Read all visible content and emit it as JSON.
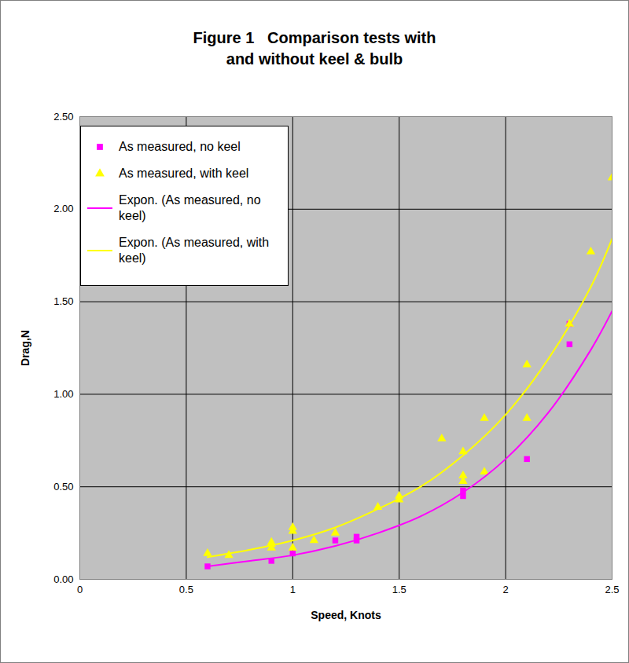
{
  "chart_data": {
    "type": "scatter",
    "title": "Figure 1   Comparison tests with\nand without keel & bulb",
    "x_label": "Speed, Knots",
    "y_label": "Drag,N",
    "xlim": [
      0,
      2.5
    ],
    "xticks": [
      0,
      0.5,
      1,
      1.5,
      2,
      2.5
    ],
    "ylim": [
      0,
      2.5
    ],
    "yticks": [
      {
        "value": 0,
        "label": "0.00"
      },
      {
        "value": 0.5,
        "label": "0.50"
      },
      {
        "value": 1,
        "label": "1.00"
      },
      {
        "value": 1.5,
        "label": "1.50"
      },
      {
        "value": 2,
        "label": "2.00"
      },
      {
        "value": 2.5,
        "label": "2.50"
      }
    ],
    "grid": true,
    "legend": "top-left",
    "series": [
      {
        "name": "As measured, no keel",
        "type": "scatter",
        "marker": "square",
        "color": "#ff00ff",
        "x": [
          0.6,
          0.9,
          1.0,
          1.2,
          1.3,
          1.3,
          1.8,
          1.8,
          2.1,
          2.3,
          2.3
        ],
        "values": [
          0.07,
          0.1,
          0.14,
          0.21,
          0.21,
          0.23,
          0.45,
          0.48,
          0.65,
          1.27,
          1.38
        ]
      },
      {
        "name": "As measured, with keel",
        "type": "scatter",
        "marker": "triangle",
        "color": "#ffff00",
        "x": [
          0.6,
          0.7,
          0.9,
          0.9,
          0.9,
          1.0,
          1.0,
          1.0,
          1.1,
          1.2,
          1.4,
          1.5,
          1.5,
          1.7,
          1.8,
          1.8,
          1.8,
          1.9,
          1.9,
          2.1,
          2.1,
          2.3,
          2.4,
          2.5
        ],
        "values": [
          0.14,
          0.13,
          0.17,
          0.19,
          0.2,
          0.17,
          0.26,
          0.28,
          0.21,
          0.25,
          0.39,
          0.43,
          0.45,
          0.76,
          0.53,
          0.56,
          0.69,
          0.58,
          0.87,
          0.87,
          1.16,
          1.38,
          1.77,
          2.17
        ]
      },
      {
        "name": "Expon. (As measured, no keel)",
        "type": "line",
        "line_style": "solid",
        "color": "#ff00ff",
        "x": [
          0.6,
          0.8,
          1.0,
          1.2,
          1.4,
          1.6,
          1.8,
          2.0,
          2.2,
          2.4,
          2.5
        ],
        "values": [
          0.07,
          0.1,
          0.13,
          0.18,
          0.25,
          0.34,
          0.47,
          0.65,
          0.9,
          1.24,
          1.45
        ]
      },
      {
        "name": "Expon. (As measured, with keel)",
        "type": "line",
        "line_style": "solid",
        "color": "#ffff00",
        "x": [
          0.6,
          0.8,
          1.0,
          1.2,
          1.4,
          1.6,
          1.8,
          2.0,
          2.2,
          2.4,
          2.5
        ],
        "values": [
          0.12,
          0.16,
          0.21,
          0.28,
          0.38,
          0.5,
          0.67,
          0.89,
          1.19,
          1.58,
          1.84
        ]
      }
    ]
  }
}
